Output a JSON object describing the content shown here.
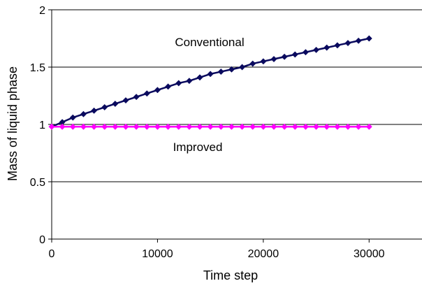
{
  "chart_data": {
    "type": "line",
    "title": "",
    "xlabel": "Time step",
    "ylabel": "Mass of liquid phase",
    "xlim": [
      0,
      35000
    ],
    "ylim": [
      0,
      2
    ],
    "x_ticks": [
      0,
      10000,
      20000,
      30000
    ],
    "x_tick_labels": [
      "0",
      "10000",
      "20000",
      "30000"
    ],
    "y_ticks": [
      0,
      0.5,
      1,
      1.5,
      2
    ],
    "y_tick_labels": [
      "0",
      "0.5",
      "1",
      "1.5",
      "2"
    ],
    "grid": "horizontal",
    "legend": "none",
    "annotations": [
      "Conventional",
      "Improved"
    ],
    "x": [
      0,
      1000,
      2000,
      3000,
      4000,
      5000,
      6000,
      7000,
      8000,
      9000,
      10000,
      11000,
      12000,
      13000,
      14000,
      15000,
      16000,
      17000,
      18000,
      19000,
      20000,
      21000,
      22000,
      23000,
      24000,
      25000,
      26000,
      27000,
      28000,
      29000,
      30000
    ],
    "series": [
      {
        "name": "Conventional",
        "color": "#0a0a5e",
        "values": [
          0.98,
          1.02,
          1.06,
          1.09,
          1.12,
          1.15,
          1.18,
          1.21,
          1.24,
          1.27,
          1.3,
          1.33,
          1.36,
          1.38,
          1.41,
          1.44,
          1.46,
          1.48,
          1.5,
          1.53,
          1.55,
          1.57,
          1.59,
          1.61,
          1.63,
          1.65,
          1.67,
          1.69,
          1.71,
          1.73,
          1.75
        ]
      },
      {
        "name": "Improved",
        "color": "#ff00ff",
        "values": [
          0.98,
          0.98,
          0.98,
          0.98,
          0.98,
          0.98,
          0.98,
          0.98,
          0.98,
          0.98,
          0.98,
          0.98,
          0.98,
          0.98,
          0.98,
          0.98,
          0.98,
          0.98,
          0.98,
          0.98,
          0.98,
          0.98,
          0.98,
          0.98,
          0.98,
          0.98,
          0.98,
          0.98,
          0.98,
          0.98,
          0.98
        ]
      }
    ]
  }
}
